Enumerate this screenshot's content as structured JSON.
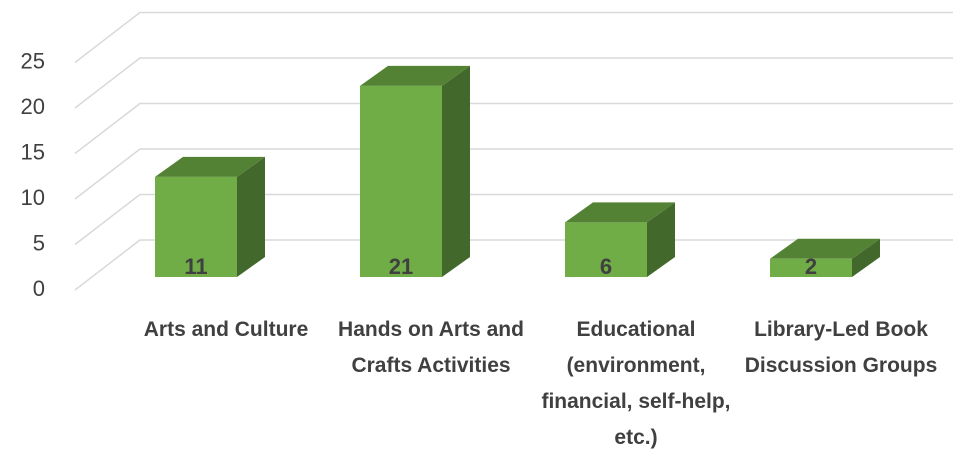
{
  "chart_data": {
    "type": "bar3d",
    "categories": [
      "Arts and Culture",
      "Hands on Arts and Crafts Activities",
      "Educational (environment, financial, self-help, etc.)",
      "Library-Led Book Discussion Groups"
    ],
    "values": [
      11,
      21,
      6,
      2
    ],
    "color": "#70ad47",
    "ylim": [
      0,
      25
    ],
    "yticks": [
      0,
      5,
      10,
      15,
      20,
      25
    ],
    "grid": true
  }
}
